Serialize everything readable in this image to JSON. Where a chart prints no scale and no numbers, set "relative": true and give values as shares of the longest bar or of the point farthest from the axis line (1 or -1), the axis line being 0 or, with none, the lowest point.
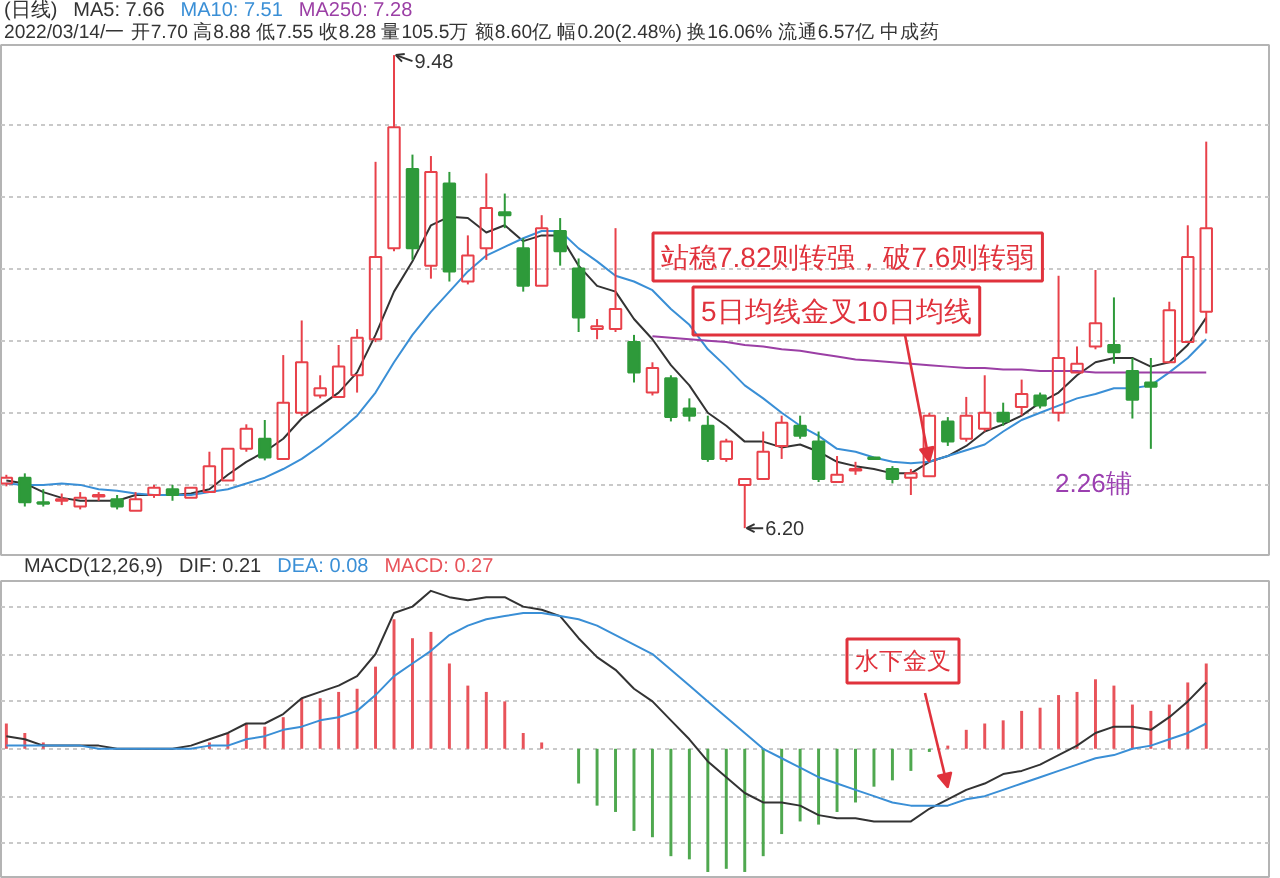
{
  "chart_data": [
    {
      "type": "candlestick",
      "title": "(日线)",
      "subtitle": "2022/03/14/一 开7.70 高8.88 低7.55 收8.28 量105.5万 额8.60亿 幅0.20(2.48%) 换16.06% 流通6.57亿 中成药",
      "categories": [
        null,
        null,
        null,
        null,
        null,
        null,
        null,
        null,
        null,
        null,
        null,
        null,
        null,
        null,
        null,
        null,
        null,
        null,
        null,
        null,
        null,
        null,
        null,
        null,
        null,
        null,
        null,
        null,
        null,
        null,
        null,
        null,
        null,
        null,
        null,
        null,
        null,
        null,
        null,
        null,
        null,
        null,
        null,
        null,
        null,
        null,
        null,
        null,
        null,
        null,
        null,
        null,
        null,
        null,
        null,
        null,
        null,
        null,
        null,
        null,
        null,
        null,
        null,
        null,
        null,
        null
      ],
      "ohlc": [
        [
          6.51,
          6.57,
          6.49,
          6.55
        ],
        [
          6.55,
          6.58,
          6.35,
          6.38
        ],
        [
          6.38,
          6.47,
          6.35,
          6.37
        ],
        [
          6.39,
          6.44,
          6.36,
          6.4
        ],
        [
          6.35,
          6.45,
          6.33,
          6.41
        ],
        [
          6.42,
          6.45,
          6.39,
          6.43
        ],
        [
          6.4,
          6.43,
          6.33,
          6.35
        ],
        [
          6.32,
          6.45,
          6.31,
          6.4
        ],
        [
          6.43,
          6.5,
          6.41,
          6.48
        ],
        [
          6.47,
          6.5,
          6.39,
          6.43
        ],
        [
          6.41,
          6.49,
          6.4,
          6.48
        ],
        [
          6.45,
          6.73,
          6.44,
          6.63
        ],
        [
          6.53,
          6.76,
          6.52,
          6.75
        ],
        [
          6.75,
          6.92,
          6.73,
          6.89
        ],
        [
          6.82,
          6.95,
          6.67,
          6.69
        ],
        [
          6.68,
          7.4,
          6.67,
          7.07
        ],
        [
          7.0,
          7.64,
          6.98,
          7.35
        ],
        [
          7.12,
          7.26,
          7.1,
          7.17
        ],
        [
          7.11,
          7.47,
          7.1,
          7.32
        ],
        [
          7.26,
          7.58,
          7.14,
          7.52
        ],
        [
          7.51,
          8.74,
          7.49,
          8.08
        ],
        [
          8.14,
          9.48,
          8.12,
          8.98
        ],
        [
          8.69,
          8.79,
          8.06,
          8.14
        ],
        [
          8.02,
          8.78,
          7.93,
          8.67
        ],
        [
          8.59,
          8.67,
          7.91,
          7.98
        ],
        [
          7.91,
          8.23,
          7.89,
          8.09
        ],
        [
          8.14,
          8.66,
          8.06,
          8.42
        ],
        [
          8.39,
          8.52,
          8.28,
          8.37
        ],
        [
          8.14,
          8.21,
          7.84,
          7.88
        ],
        [
          7.88,
          8.37,
          7.87,
          8.28
        ],
        [
          8.26,
          8.35,
          8.02,
          8.12
        ],
        [
          8.0,
          8.07,
          7.56,
          7.66
        ],
        [
          7.58,
          7.65,
          7.51,
          7.6
        ],
        [
          7.58,
          8.28,
          7.56,
          7.72
        ],
        [
          7.49,
          7.54,
          7.21,
          7.28
        ],
        [
          7.14,
          7.35,
          7.12,
          7.31
        ],
        [
          7.24,
          7.26,
          6.94,
          6.97
        ],
        [
          7.03,
          7.1,
          6.94,
          6.98
        ],
        [
          6.91,
          6.98,
          6.66,
          6.68
        ],
        [
          6.68,
          6.82,
          6.66,
          6.8
        ],
        [
          6.5,
          6.55,
          6.2,
          6.54
        ],
        [
          6.54,
          6.87,
          6.53,
          6.73
        ],
        [
          6.77,
          6.98,
          6.68,
          6.93
        ],
        [
          6.91,
          6.98,
          6.82,
          6.84
        ],
        [
          6.8,
          6.87,
          6.52,
          6.54
        ],
        [
          6.52,
          6.7,
          6.51,
          6.57
        ],
        [
          6.6,
          6.66,
          6.57,
          6.61
        ],
        [
          6.69,
          6.7,
          6.67,
          6.68
        ],
        [
          6.61,
          6.63,
          6.51,
          6.54
        ],
        [
          6.55,
          6.61,
          6.43,
          6.58
        ],
        [
          6.56,
          7.0,
          6.55,
          6.98
        ],
        [
          6.94,
          6.97,
          6.77,
          6.8
        ],
        [
          6.82,
          7.11,
          6.8,
          6.98
        ],
        [
          6.89,
          7.26,
          6.87,
          7.0
        ],
        [
          7.0,
          7.07,
          6.91,
          6.94
        ],
        [
          7.04,
          7.23,
          6.98,
          7.13
        ],
        [
          7.12,
          7.14,
          7.03,
          7.05
        ],
        [
          7.0,
          7.95,
          6.94,
          7.38
        ],
        [
          7.28,
          7.46,
          7.27,
          7.34
        ],
        [
          7.46,
          7.99,
          7.44,
          7.62
        ],
        [
          7.47,
          7.8,
          7.34,
          7.42
        ],
        [
          7.29,
          7.38,
          6.96,
          7.09
        ],
        [
          7.21,
          7.38,
          6.75,
          7.18
        ],
        [
          7.35,
          7.77,
          7.34,
          7.71
        ],
        [
          7.49,
          8.3,
          7.48,
          8.08
        ],
        [
          7.7,
          8.88,
          7.55,
          8.28
        ]
      ],
      "colors": [
        "#e8414a",
        "#2e9a3a",
        "#2e9a3a",
        "#e8414a",
        "#e8414a",
        "#e8414a",
        "#2e9a3a",
        "#e8414a",
        "#e8414a",
        "#2e9a3a",
        "#e8414a",
        "#e8414a",
        "#e8414a",
        "#e8414a",
        "#2e9a3a",
        "#e8414a",
        "#e8414a",
        "#e8414a",
        "#e8414a",
        "#e8414a",
        "#e8414a",
        "#e8414a",
        "#2e9a3a",
        "#e8414a",
        "#2e9a3a",
        "#e8414a",
        "#e8414a",
        "#2e9a3a",
        "#2e9a3a",
        "#e8414a",
        "#2e9a3a",
        "#2e9a3a",
        "#e8414a",
        "#e8414a",
        "#2e9a3a",
        "#e8414a",
        "#2e9a3a",
        "#2e9a3a",
        "#2e9a3a",
        "#e8414a",
        "#e8414a",
        "#e8414a",
        "#e8414a",
        "#2e9a3a",
        "#2e9a3a",
        "#e8414a",
        "#e8414a",
        "#2e9a3a",
        "#2e9a3a",
        "#e8414a",
        "#e8414a",
        "#2e9a3a",
        "#e8414a",
        "#e8414a",
        "#2e9a3a",
        "#e8414a",
        "#2e9a3a",
        "#e8414a",
        "#e8414a",
        "#e8414a",
        "#2e9a3a",
        "#2e9a3a",
        "#2e9a3a",
        "#e8414a",
        "#e8414a",
        "#e8414a"
      ],
      "series": [
        {
          "name": "MA5: 7.66",
          "type": "line",
          "color": "#333333",
          "values": [
            6.53,
            6.51,
            6.45,
            6.41,
            6.39,
            6.39,
            6.39,
            6.43,
            6.43,
            6.43,
            6.44,
            6.47,
            6.57,
            6.66,
            6.73,
            6.82,
            6.96,
            7.05,
            7.14,
            7.28,
            7.54,
            7.84,
            8.05,
            8.3,
            8.36,
            8.35,
            8.25,
            8.3,
            8.19,
            8.23,
            8.23,
            8.02,
            7.88,
            7.84,
            7.65,
            7.51,
            7.33,
            7.19,
            7.0,
            6.91,
            6.8,
            6.8,
            6.76,
            6.78,
            6.73,
            6.66,
            6.63,
            6.61,
            6.58,
            6.58,
            6.66,
            6.7,
            6.77,
            6.87,
            6.92,
            6.98,
            7.07,
            7.14,
            7.26,
            7.35,
            7.38,
            7.38,
            7.32,
            7.35,
            7.47,
            7.66
          ]
        },
        {
          "name": "MA10: 7.51",
          "type": "line",
          "color": "#3a8fd6",
          "values": [
            6.51,
            6.5,
            6.5,
            6.51,
            6.5,
            6.47,
            6.46,
            6.44,
            6.43,
            6.43,
            6.43,
            6.45,
            6.47,
            6.51,
            6.55,
            6.61,
            6.68,
            6.77,
            6.87,
            6.98,
            7.14,
            7.35,
            7.54,
            7.7,
            7.84,
            7.98,
            8.09,
            8.15,
            8.21,
            8.26,
            8.26,
            8.14,
            8.05,
            7.95,
            7.91,
            7.85,
            7.72,
            7.61,
            7.44,
            7.32,
            7.19,
            7.1,
            7.0,
            6.91,
            6.84,
            6.75,
            6.73,
            6.69,
            6.66,
            6.65,
            6.66,
            6.7,
            6.74,
            6.78,
            6.87,
            6.95,
            7.0,
            7.05,
            7.1,
            7.13,
            7.17,
            7.17,
            7.19,
            7.28,
            7.38,
            7.51
          ]
        },
        {
          "name": "MA250: 7.28",
          "type": "line",
          "color": "#9b3fa5",
          "values": [
            null,
            null,
            null,
            null,
            null,
            null,
            null,
            null,
            null,
            null,
            null,
            null,
            null,
            null,
            null,
            null,
            null,
            null,
            null,
            null,
            null,
            null,
            null,
            null,
            null,
            null,
            null,
            null,
            null,
            null,
            null,
            null,
            null,
            null,
            null,
            7.53,
            7.52,
            7.51,
            7.5,
            7.49,
            7.47,
            7.46,
            7.44,
            7.43,
            7.41,
            7.39,
            7.37,
            7.36,
            7.35,
            7.34,
            7.33,
            7.32,
            7.31,
            7.31,
            7.3,
            7.3,
            7.29,
            7.29,
            7.29,
            7.28,
            7.28,
            7.28,
            7.28,
            7.28,
            7.28,
            7.28
          ]
        }
      ],
      "ylim": [
        6.0,
        9.55
      ],
      "yticks": [
        {
          "value": 6.5,
          "label": null
        },
        {
          "value": 7.0,
          "label": null
        },
        {
          "value": 7.5,
          "label": null
        },
        {
          "value": 8.0,
          "label": null
        },
        {
          "value": 8.5,
          "label": null
        },
        {
          "value": 9.0,
          "label": null
        }
      ],
      "grid": "y",
      "legend": "top left",
      "tick_labels": false,
      "annotations": [
        "9.48",
        "6.20",
        "站稳7.82则转强，破7.6则转弱",
        "5日均线金叉10日均线",
        "2.26辅"
      ]
    },
    {
      "type": "bar",
      "title": "MACD(12,26,9)",
      "relative": true,
      "categories": [
        null,
        null,
        null,
        null,
        null,
        null,
        null,
        null,
        null,
        null,
        null,
        null,
        null,
        null,
        null,
        null,
        null,
        null,
        null,
        null,
        null,
        null,
        null,
        null,
        null,
        null,
        null,
        null,
        null,
        null,
        null,
        null,
        null,
        null,
        null,
        null,
        null,
        null,
        null,
        null,
        null,
        null,
        null,
        null,
        null,
        null,
        null,
        null,
        null,
        null,
        null,
        null,
        null,
        null,
        null,
        null,
        null,
        null,
        null,
        null,
        null,
        null,
        null,
        null,
        null,
        null
      ],
      "series": [
        {
          "name": "DIF: 0.21",
          "type": "line",
          "color": "#333333",
          "values": [
            0.08,
            0.06,
            0.02,
            0.02,
            0.02,
            0.02,
            0.0,
            0.0,
            0.0,
            0.0,
            0.02,
            0.06,
            0.1,
            0.16,
            0.16,
            0.22,
            0.32,
            0.36,
            0.4,
            0.46,
            0.6,
            0.86,
            0.9,
            1.0,
            0.96,
            0.94,
            0.96,
            0.96,
            0.9,
            0.88,
            0.84,
            0.7,
            0.58,
            0.5,
            0.38,
            0.3,
            0.18,
            0.06,
            -0.08,
            -0.18,
            -0.28,
            -0.34,
            -0.34,
            -0.36,
            -0.42,
            -0.44,
            -0.44,
            -0.46,
            -0.46,
            -0.46,
            -0.38,
            -0.32,
            -0.26,
            -0.22,
            -0.16,
            -0.14,
            -0.1,
            -0.04,
            0.02,
            0.1,
            0.14,
            0.14,
            0.12,
            0.2,
            0.3,
            0.42
          ]
        },
        {
          "name": "DEA: 0.08",
          "type": "line",
          "color": "#3a8fd6",
          "values": [
            0.02,
            0.02,
            0.02,
            0.02,
            0.02,
            0.0,
            0.0,
            0.0,
            0.0,
            0.0,
            0.0,
            0.02,
            0.02,
            0.06,
            0.08,
            0.12,
            0.14,
            0.18,
            0.2,
            0.24,
            0.34,
            0.46,
            0.54,
            0.62,
            0.72,
            0.78,
            0.82,
            0.84,
            0.86,
            0.86,
            0.84,
            0.82,
            0.78,
            0.72,
            0.66,
            0.6,
            0.5,
            0.4,
            0.3,
            0.2,
            0.1,
            0.0,
            -0.06,
            -0.12,
            -0.18,
            -0.22,
            -0.26,
            -0.3,
            -0.34,
            -0.36,
            -0.36,
            -0.36,
            -0.32,
            -0.3,
            -0.26,
            -0.22,
            -0.18,
            -0.14,
            -0.1,
            -0.06,
            -0.04,
            0.0,
            0.02,
            0.06,
            0.1,
            0.16
          ]
        },
        {
          "name": "MACD: 0.27",
          "type": "bar",
          "values": [
            0.16,
            0.1,
            0.04,
            null,
            null,
            null,
            null,
            null,
            null,
            null,
            null,
            0.04,
            0.1,
            0.16,
            0.14,
            0.2,
            0.32,
            0.32,
            0.36,
            0.38,
            0.52,
            0.82,
            0.7,
            0.74,
            0.54,
            0.4,
            0.36,
            0.3,
            0.1,
            0.04,
            null,
            -0.22,
            -0.36,
            -0.4,
            -0.52,
            -0.56,
            -0.68,
            -0.7,
            -0.78,
            -0.76,
            -0.78,
            -0.68,
            -0.54,
            -0.46,
            -0.48,
            -0.4,
            -0.34,
            -0.24,
            -0.2,
            -0.14,
            -0.02,
            0.02,
            0.12,
            0.16,
            0.18,
            0.24,
            0.26,
            0.34,
            0.36,
            0.44,
            0.4,
            0.28,
            0.24,
            0.28,
            0.42,
            0.54
          ],
          "colors": [
            "#e8535a",
            "#e8535a",
            "#e8535a",
            "#e8535a",
            "#e8535a",
            "#e8535a",
            "#e8535a",
            "#e8535a",
            "#e8535a",
            "#e8535a",
            "#e8535a",
            "#e8535a",
            "#e8535a",
            "#e8535a",
            "#e8535a",
            "#e8535a",
            "#e8535a",
            "#e8535a",
            "#e8535a",
            "#e8535a",
            "#e8535a",
            "#e8535a",
            "#e8535a",
            "#e8535a",
            "#e8535a",
            "#e8535a",
            "#e8535a",
            "#e8535a",
            "#e8535a",
            "#e8535a",
            "#e8535a",
            "#4fa84f",
            "#4fa84f",
            "#4fa84f",
            "#4fa84f",
            "#4fa84f",
            "#4fa84f",
            "#4fa84f",
            "#4fa84f",
            "#4fa84f",
            "#4fa84f",
            "#4fa84f",
            "#4fa84f",
            "#4fa84f",
            "#4fa84f",
            "#4fa84f",
            "#4fa84f",
            "#4fa84f",
            "#4fa84f",
            "#4fa84f",
            "#4fa84f",
            "#e8535a",
            "#e8535a",
            "#e8535a",
            "#e8535a",
            "#e8535a",
            "#e8535a",
            "#e8535a",
            "#e8535a",
            "#e8535a",
            "#e8535a",
            "#e8535a",
            "#e8535a",
            "#e8535a",
            "#e8535a",
            "#e8535a"
          ]
        }
      ],
      "grid": "y",
      "tick_labels": false,
      "annotations": [
        "水下金叉"
      ]
    }
  ]
}
